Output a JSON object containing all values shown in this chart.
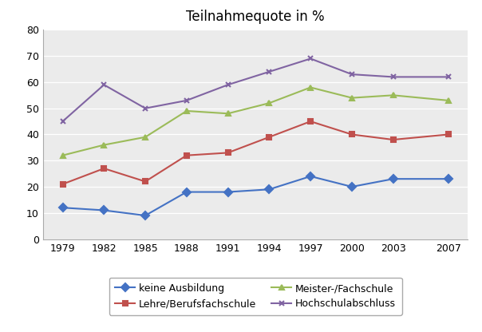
{
  "title": "Teilnahmequote in %",
  "years": [
    1979,
    1982,
    1985,
    1988,
    1991,
    1994,
    1997,
    2000,
    2003,
    2007
  ],
  "series": [
    {
      "label": "keine Ausbildung",
      "values": [
        12,
        11,
        9,
        18,
        18,
        19,
        24,
        20,
        23,
        23
      ],
      "color": "#4472C4",
      "marker": "D"
    },
    {
      "label": "Lehre/Berufsfachschule",
      "values": [
        21,
        27,
        22,
        32,
        33,
        39,
        45,
        40,
        38,
        40
      ],
      "color": "#C0504D",
      "marker": "s"
    },
    {
      "label": "Meister-/Fachschule",
      "values": [
        32,
        36,
        39,
        49,
        48,
        52,
        58,
        54,
        55,
        53
      ],
      "color": "#9BBB59",
      "marker": "^"
    },
    {
      "label": "Hochschulabschluss",
      "values": [
        45,
        59,
        50,
        53,
        59,
        64,
        69,
        63,
        62,
        62
      ],
      "color": "#8064A2",
      "marker": "x"
    }
  ],
  "ylim": [
    0,
    80
  ],
  "yticks": [
    0,
    10,
    20,
    30,
    40,
    50,
    60,
    70,
    80
  ],
  "plot_bg": "#EBEBEB",
  "fig_bg": "#FFFFFF",
  "figsize": [
    6.04,
    4.16
  ],
  "dpi": 100,
  "legend_order": [
    0,
    1,
    2,
    3
  ],
  "legend_ncol": 2
}
